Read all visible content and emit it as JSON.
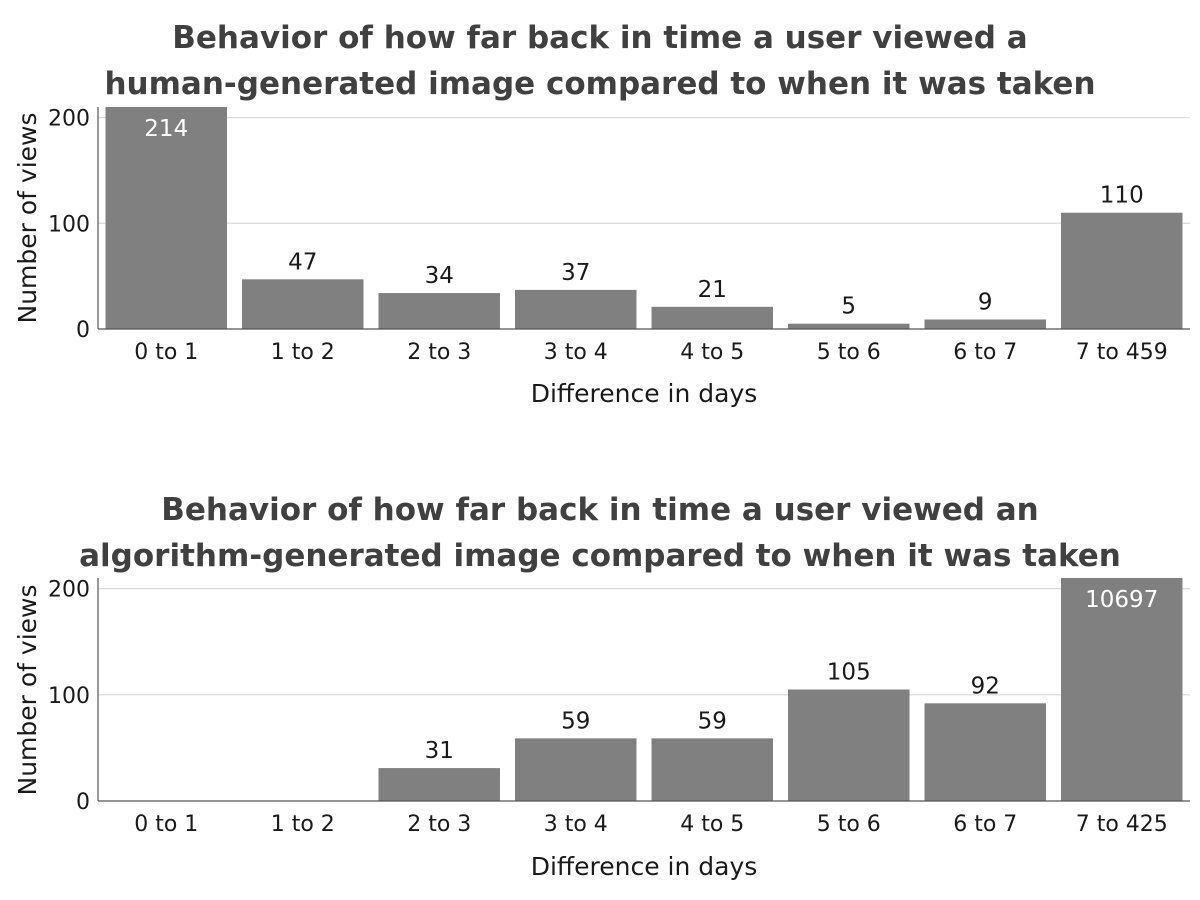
{
  "chart_data": [
    {
      "type": "bar",
      "title": [
        "Behavior of how far back in time a user viewed a",
        "human-generated image compared to when it was taken"
      ],
      "xlabel": "Difference in days",
      "ylabel": "Number of views",
      "categories": [
        "0 to 1",
        "1 to 2",
        "2 to 3",
        "3 to 4",
        "4 to 5",
        "5 to 6",
        "6 to 7",
        "7 to 459"
      ],
      "values": [
        214,
        47,
        34,
        37,
        21,
        5,
        9,
        110
      ],
      "data_labels": [
        "214",
        "47",
        "34",
        "37",
        "21",
        "5",
        "9",
        "110"
      ],
      "ylim": [
        0,
        210
      ],
      "yticks": [
        0,
        100,
        200
      ],
      "grid": true,
      "bar_color": "#808080",
      "legend": "none"
    },
    {
      "type": "bar",
      "title": [
        "Behavior of how far back in time a user viewed an",
        "algorithm-generated image compared to when it was taken"
      ],
      "xlabel": "Difference in days",
      "ylabel": "Number of views",
      "categories": [
        "0 to 1",
        "1 to 2",
        "2 to 3",
        "3 to 4",
        "4 to 5",
        "5 to 6",
        "6 to 7",
        "7 to 425"
      ],
      "values": [
        0,
        0,
        31,
        59,
        59,
        105,
        92,
        10697
      ],
      "data_labels": [
        "",
        "",
        "31",
        "59",
        "59",
        "105",
        "92",
        "10697"
      ],
      "ylim": [
        0,
        210
      ],
      "yticks": [
        0,
        100,
        200
      ],
      "grid": true,
      "bar_color": "#808080",
      "legend": "none"
    }
  ]
}
